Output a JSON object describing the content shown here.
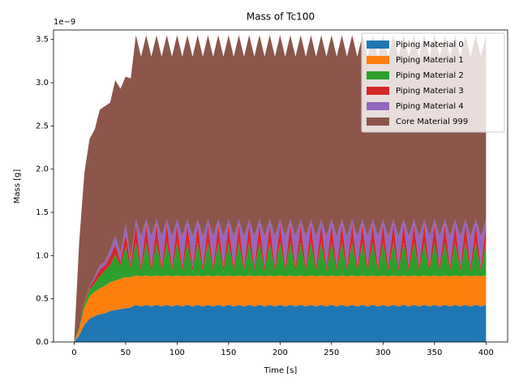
{
  "chart_data": {
    "type": "stackplot",
    "title": "Mass of Tc100",
    "xlabel": "Time [s]",
    "ylabel": "Mass [g]",
    "y_offset_label": "1e−9",
    "xlim": [
      -20,
      421
    ],
    "ylim": [
      0,
      3.61
    ],
    "xticks": [
      0,
      50,
      100,
      150,
      200,
      250,
      300,
      350,
      400
    ],
    "yticks": [
      {
        "value": 0,
        "label": "0.0"
      },
      {
        "value": 0.5,
        "label": "0.5"
      },
      {
        "value": 1,
        "label": "1.0"
      },
      {
        "value": 1.5,
        "label": "1.5"
      },
      {
        "value": 2,
        "label": "2.0"
      },
      {
        "value": 2.5,
        "label": "2.5"
      },
      {
        "value": 3,
        "label": "3.0"
      },
      {
        "value": 3.5,
        "label": "3.5"
      }
    ],
    "legend": "upper right",
    "x": [
      0,
      5,
      10,
      15,
      20,
      25,
      30,
      35,
      40,
      45,
      50,
      55,
      60,
      65,
      70,
      75,
      80,
      85,
      90,
      95,
      100,
      105,
      110,
      115,
      120,
      125,
      130,
      135,
      140,
      145,
      150,
      155,
      160,
      165,
      170,
      175,
      180,
      185,
      190,
      195,
      200,
      205,
      210,
      215,
      220,
      225,
      230,
      235,
      240,
      245,
      250,
      255,
      260,
      265,
      270,
      275,
      280,
      285,
      290,
      295,
      300,
      305,
      310,
      315,
      320,
      325,
      330,
      335,
      340,
      345,
      350,
      355,
      360,
      365,
      370,
      375,
      380,
      385,
      390,
      395,
      400
    ],
    "series": [
      {
        "name": "Piping Material 0",
        "color": "#1f77b4",
        "values": [
          0,
          0.08,
          0.2,
          0.27,
          0.3,
          0.32,
          0.33,
          0.36,
          0.37,
          0.38,
          0.39,
          0.4,
          0.43,
          0.41,
          0.43,
          0.41,
          0.43,
          0.41,
          0.43,
          0.41,
          0.43,
          0.41,
          0.43,
          0.41,
          0.43,
          0.41,
          0.43,
          0.41,
          0.43,
          0.41,
          0.43,
          0.41,
          0.43,
          0.41,
          0.43,
          0.41,
          0.43,
          0.41,
          0.43,
          0.41,
          0.43,
          0.41,
          0.43,
          0.41,
          0.43,
          0.41,
          0.43,
          0.41,
          0.43,
          0.41,
          0.43,
          0.41,
          0.43,
          0.41,
          0.43,
          0.41,
          0.43,
          0.41,
          0.43,
          0.41,
          0.43,
          0.41,
          0.43,
          0.41,
          0.43,
          0.41,
          0.43,
          0.41,
          0.43,
          0.41,
          0.43,
          0.41,
          0.43,
          0.41,
          0.43,
          0.41,
          0.43,
          0.41,
          0.43,
          0.41,
          0.43
        ]
      },
      {
        "name": "Piping Material 1",
        "color": "#ff7f0e",
        "values": [
          0,
          0.07,
          0.2,
          0.26,
          0.28,
          0.3,
          0.32,
          0.33,
          0.34,
          0.35,
          0.36,
          0.35,
          0.34,
          0.35,
          0.34,
          0.35,
          0.34,
          0.35,
          0.34,
          0.35,
          0.34,
          0.35,
          0.34,
          0.35,
          0.34,
          0.35,
          0.34,
          0.35,
          0.34,
          0.35,
          0.34,
          0.35,
          0.34,
          0.35,
          0.34,
          0.35,
          0.34,
          0.35,
          0.34,
          0.35,
          0.34,
          0.35,
          0.34,
          0.35,
          0.34,
          0.35,
          0.34,
          0.35,
          0.34,
          0.35,
          0.34,
          0.35,
          0.34,
          0.35,
          0.34,
          0.35,
          0.34,
          0.35,
          0.34,
          0.35,
          0.34,
          0.35,
          0.34,
          0.35,
          0.34,
          0.35,
          0.34,
          0.35,
          0.34,
          0.35,
          0.34,
          0.35,
          0.34,
          0.35,
          0.34,
          0.35,
          0.34,
          0.35,
          0.34,
          0.35,
          0.34
        ]
      },
      {
        "name": "Piping Material 2",
        "color": "#2ca02c",
        "values": [
          0,
          0.02,
          0.05,
          0.08,
          0.1,
          0.14,
          0.18,
          0.2,
          0.3,
          0.15,
          0.35,
          0.1,
          0.38,
          0.06,
          0.38,
          0.06,
          0.38,
          0.06,
          0.38,
          0.06,
          0.38,
          0.06,
          0.38,
          0.06,
          0.38,
          0.06,
          0.38,
          0.06,
          0.38,
          0.06,
          0.38,
          0.06,
          0.38,
          0.06,
          0.38,
          0.06,
          0.38,
          0.06,
          0.38,
          0.06,
          0.38,
          0.06,
          0.38,
          0.06,
          0.38,
          0.06,
          0.38,
          0.06,
          0.38,
          0.06,
          0.38,
          0.06,
          0.38,
          0.06,
          0.38,
          0.06,
          0.38,
          0.06,
          0.38,
          0.06,
          0.38,
          0.06,
          0.38,
          0.06,
          0.38,
          0.06,
          0.38,
          0.06,
          0.38,
          0.06,
          0.38,
          0.06,
          0.38,
          0.06,
          0.38,
          0.06,
          0.38,
          0.06,
          0.38,
          0.06,
          0.38
        ]
      },
      {
        "name": "Piping Material 3",
        "color": "#d62728",
        "values": [
          0,
          0,
          0.01,
          0.03,
          0.05,
          0.08,
          0.06,
          0.1,
          0.12,
          0.05,
          0.15,
          0.05,
          0.22,
          0.05,
          0.22,
          0.05,
          0.22,
          0.05,
          0.22,
          0.05,
          0.22,
          0.05,
          0.22,
          0.05,
          0.22,
          0.05,
          0.22,
          0.05,
          0.22,
          0.05,
          0.22,
          0.05,
          0.22,
          0.05,
          0.22,
          0.05,
          0.22,
          0.05,
          0.22,
          0.05,
          0.22,
          0.05,
          0.22,
          0.05,
          0.22,
          0.05,
          0.22,
          0.05,
          0.22,
          0.05,
          0.22,
          0.05,
          0.22,
          0.05,
          0.22,
          0.05,
          0.22,
          0.05,
          0.22,
          0.05,
          0.22,
          0.05,
          0.22,
          0.05,
          0.22,
          0.05,
          0.22,
          0.05,
          0.22,
          0.05,
          0.22,
          0.05,
          0.22,
          0.05,
          0.22,
          0.05,
          0.22,
          0.05,
          0.22,
          0.05,
          0.22
        ]
      },
      {
        "name": "Piping Material 4",
        "color": "#9467bd",
        "values": [
          0,
          0,
          0,
          0.01,
          0.03,
          0.05,
          0.04,
          0.08,
          0.1,
          0.1,
          0.12,
          0.05,
          0.05,
          0.35,
          0.05,
          0.35,
          0.05,
          0.35,
          0.05,
          0.35,
          0.05,
          0.35,
          0.05,
          0.35,
          0.05,
          0.35,
          0.05,
          0.35,
          0.05,
          0.35,
          0.05,
          0.35,
          0.05,
          0.35,
          0.05,
          0.35,
          0.05,
          0.35,
          0.05,
          0.35,
          0.05,
          0.35,
          0.05,
          0.35,
          0.05,
          0.35,
          0.05,
          0.35,
          0.05,
          0.35,
          0.05,
          0.35,
          0.05,
          0.35,
          0.05,
          0.35,
          0.05,
          0.35,
          0.05,
          0.35,
          0.05,
          0.35,
          0.05,
          0.35,
          0.05,
          0.35,
          0.05,
          0.35,
          0.05,
          0.35,
          0.05,
          0.35,
          0.05,
          0.35,
          0.05,
          0.35,
          0.05,
          0.35,
          0.05,
          0.35,
          0.05
        ]
      },
      {
        "name": "Core Material 999",
        "color": "#8c564b",
        "values": [
          0,
          1.0,
          1.5,
          1.7,
          1.7,
          1.8,
          1.8,
          1.7,
          1.8,
          1.9,
          1.7,
          2.1,
          2.13,
          2.08,
          2.13,
          2.08,
          2.13,
          2.08,
          2.13,
          2.08,
          2.13,
          2.08,
          2.13,
          2.08,
          2.13,
          2.08,
          2.13,
          2.08,
          2.13,
          2.08,
          2.13,
          2.08,
          2.13,
          2.08,
          2.13,
          2.08,
          2.13,
          2.08,
          2.13,
          2.08,
          2.13,
          2.08,
          2.13,
          2.08,
          2.13,
          2.08,
          2.13,
          2.08,
          2.13,
          2.08,
          2.13,
          2.08,
          2.13,
          2.08,
          2.13,
          2.08,
          2.13,
          2.08,
          2.13,
          2.08,
          2.13,
          2.08,
          2.13,
          2.08,
          2.13,
          2.08,
          2.13,
          2.08,
          2.13,
          2.08,
          2.13,
          2.08,
          2.13,
          2.08,
          2.13,
          2.08,
          2.13,
          2.08,
          2.13,
          2.08,
          2.13
        ]
      }
    ]
  }
}
